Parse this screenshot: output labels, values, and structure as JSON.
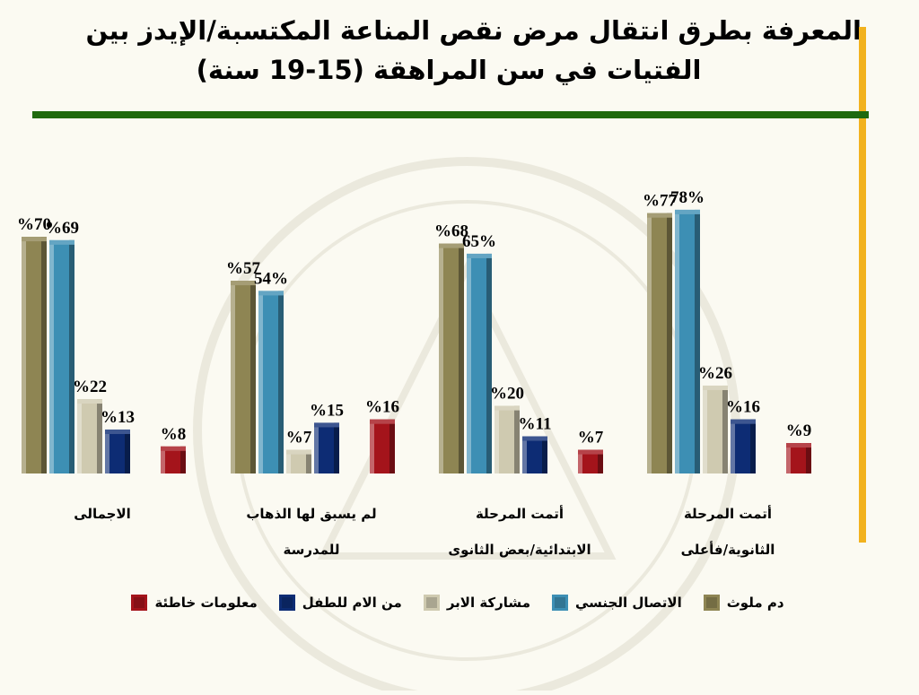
{
  "title": {
    "line1": "المعرفة بطرق انتقال مرض نقص المناعة المكتسبة/الإيدز بين",
    "line2": "الفتيات في سن المراهقة (15-19 سنة)"
  },
  "colors": {
    "olive": "#8e8553",
    "blue": "#3d8fb4",
    "beige": "#cfcab0",
    "navy": "#0d2c74",
    "red": "#a4141b",
    "green_rule": "#1f6a10",
    "gold_bar": "#f2b21e"
  },
  "chart_data": {
    "type": "bar",
    "title": "المعرفة بطرق انتقال مرض نقص المناعة المكتسبة/الإيدز بين الفتيات في سن المراهقة (15-19 سنة)",
    "ylim": [
      0,
      100
    ],
    "grid": false,
    "legend_placement": "bottom",
    "categories": [
      [
        "الاجمالى"
      ],
      [
        "لم يسبق لها الذهاب",
        "للمدرسة"
      ],
      [
        "أتمت المرحلة",
        "الابتدائية/بعض الثانوى"
      ],
      [
        "أتمت المرحلة",
        "الثانوية/فأعلى"
      ]
    ],
    "series": [
      {
        "name": "دم ملوث",
        "color": "#8e8553",
        "values": [
          70,
          57,
          68,
          77
        ],
        "labels": [
          "%70",
          "%57",
          "%68",
          "%77"
        ]
      },
      {
        "name": "الاتصال الجنسي",
        "color": "#3d8fb4",
        "values": [
          69,
          54,
          65,
          78
        ],
        "labels": [
          "%69",
          "54%",
          "65%",
          "78%"
        ]
      },
      {
        "name": "مشاركة الابر",
        "color": "#cfcab0",
        "values": [
          22,
          7,
          20,
          26
        ],
        "labels": [
          "%22",
          "%7",
          "%20",
          "%26"
        ]
      },
      {
        "name": "من الام للطفل",
        "color": "#0d2c74",
        "values": [
          13,
          15,
          11,
          16
        ],
        "labels": [
          "%13",
          "%15",
          "%11",
          "%16"
        ]
      },
      {
        "name": "معلومات خاطئة",
        "color": "#a4141b",
        "values": [
          8,
          16,
          7,
          9
        ],
        "labels": [
          "%8",
          "%16",
          "%7",
          "%9"
        ]
      }
    ]
  }
}
